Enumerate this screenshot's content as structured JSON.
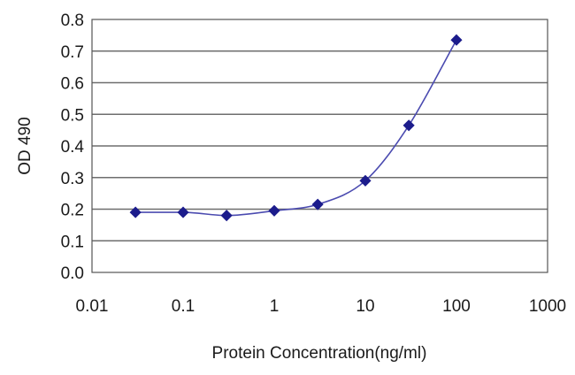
{
  "chart_data": {
    "type": "scatter",
    "title": "",
    "xlabel": "Protein Concentration(ng/ml)",
    "ylabel": "OD 490",
    "x_scale": "log",
    "xlim": [
      0.01,
      1000
    ],
    "ylim": [
      0.0,
      0.8
    ],
    "x_ticks": [
      0.01,
      0.1,
      1,
      10,
      100,
      1000
    ],
    "x_tick_labels": [
      "0.01",
      "0.1",
      "1",
      "10",
      "100",
      "1000"
    ],
    "y_ticks": [
      0.0,
      0.1,
      0.2,
      0.3,
      0.4,
      0.5,
      0.6,
      0.7,
      0.8
    ],
    "y_tick_labels": [
      "0.0",
      "0.1",
      "0.2",
      "0.3",
      "0.4",
      "0.5",
      "0.6",
      "0.7",
      "0.8"
    ],
    "grid": "horizontal",
    "legend": "none",
    "series": [
      {
        "x": [
          0.03,
          0.1,
          0.3,
          1,
          3,
          10,
          30,
          100
        ],
        "y": [
          0.19,
          0.19,
          0.18,
          0.195,
          0.215,
          0.29,
          0.465,
          0.735
        ],
        "fit_curve": true
      }
    ],
    "colors": {
      "marker": "#1c1c8c",
      "curve": "#4b4bb0",
      "gridline": "#6e6e6e",
      "frame": "#555555"
    }
  }
}
